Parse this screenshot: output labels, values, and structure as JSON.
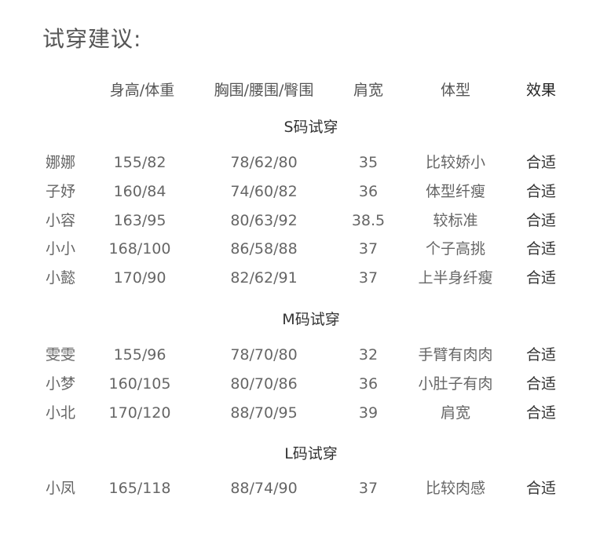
{
  "title": "试穿建议:",
  "headers": [
    "",
    "身高/体重",
    "胸围/腰围/臀围",
    "肩宽",
    "体型",
    "效果"
  ],
  "groups": [
    {
      "label": "S码试穿",
      "rows": [
        [
          "娜娜",
          "155/82",
          "78/62/80",
          "35",
          "比较娇小",
          "合适"
        ],
        [
          "子妤",
          "160/84",
          "74/60/82",
          "36",
          "体型纤瘦",
          "合适"
        ],
        [
          "小容",
          "163/95",
          "80/63/92",
          "38.5",
          "较标准",
          "合适"
        ],
        [
          "小小",
          "168/100",
          "86/58/88",
          "37",
          "个子高挑",
          "合适"
        ],
        [
          "小懿",
          "170/90",
          "82/62/91",
          "37",
          "上半身纤瘦",
          "合适"
        ]
      ]
    },
    {
      "label": "M码试穿",
      "rows": [
        [
          "雯雯",
          "155/96",
          "78/70/80",
          "32",
          "手臂有肉肉",
          "合适"
        ],
        [
          "小梦",
          "160/105",
          "80/70/86",
          "36",
          "小肚子有肉",
          "合适"
        ],
        [
          "小北",
          "170/120",
          "88/70/95",
          "39",
          "肩宽",
          "合适"
        ]
      ]
    },
    {
      "label": "L码试穿",
      "rows": [
        [
          "小凤",
          "165/118",
          "88/74/90",
          "37",
          "比较肉感",
          "合适"
        ]
      ]
    }
  ]
}
